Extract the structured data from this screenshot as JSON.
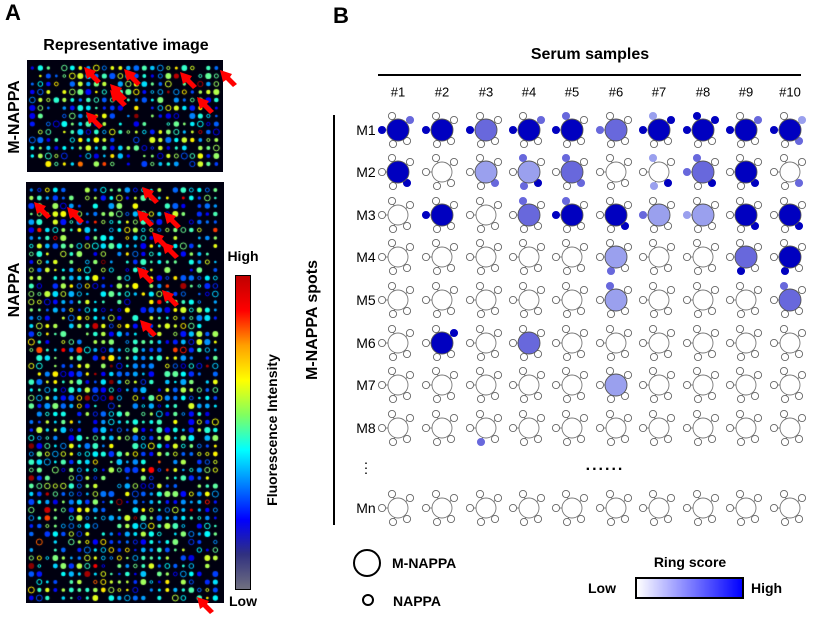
{
  "panel_a": {
    "label": "A",
    "title": "Representative image",
    "row_labels": [
      "M-NAPPA",
      "NAPPA"
    ],
    "colorbar": {
      "high": "High",
      "low": "Low",
      "title": "Fluorescence Intensity",
      "colormap": "jet"
    },
    "arrow_color": "#ff0000"
  },
  "panel_b": {
    "label": "B",
    "column_group": "Serum samples",
    "row_group": "M-NAPPA spots",
    "columns": [
      "#1",
      "#2",
      "#3",
      "#4",
      "#5",
      "#6",
      "#7",
      "#8",
      "#9",
      "#10"
    ],
    "rows": [
      "M1",
      "M2",
      "M3",
      "M4",
      "M5",
      "M6",
      "M7",
      "M8",
      "⋮",
      "Mn"
    ],
    "ellipsis": "......",
    "level_colors": [
      "#ffffff",
      "#9aa0ee",
      "#6868dc",
      "#0000c0"
    ],
    "satellite_order": [
      "top",
      "top-right",
      "left",
      "bottom",
      "bottom-right"
    ],
    "chart_data": {
      "type": "heatmap",
      "value_scale": "ring score level 0 (none) to 3 (high)",
      "cells": {
        "M1": [
          [
            3,
            [
              0,
              2,
              3,
              0,
              0
            ]
          ],
          [
            3,
            [
              0,
              0,
              3,
              0,
              0
            ]
          ],
          [
            2,
            [
              0,
              0,
              3,
              0,
              0
            ]
          ],
          [
            3,
            [
              0,
              2,
              3,
              0,
              0
            ]
          ],
          [
            3,
            [
              2,
              0,
              3,
              0,
              0
            ]
          ],
          [
            2,
            [
              0,
              0,
              2,
              0,
              0
            ]
          ],
          [
            3,
            [
              1,
              3,
              3,
              0,
              0
            ]
          ],
          [
            3,
            [
              3,
              3,
              3,
              0,
              0
            ]
          ],
          [
            3,
            [
              0,
              2,
              3,
              0,
              0
            ]
          ],
          [
            3,
            [
              0,
              1,
              3,
              0,
              2
            ]
          ]
        ],
        "M2": [
          [
            3,
            [
              0,
              0,
              0,
              0,
              3
            ]
          ],
          [
            0,
            [
              0,
              0,
              0,
              0,
              0
            ]
          ],
          [
            1,
            [
              0,
              0,
              0,
              0,
              2
            ]
          ],
          [
            1,
            [
              2,
              0,
              0,
              2,
              3
            ]
          ],
          [
            2,
            [
              2,
              0,
              0,
              0,
              2
            ]
          ],
          [
            0,
            [
              0,
              0,
              0,
              0,
              0
            ]
          ],
          [
            0,
            [
              1,
              0,
              0,
              1,
              3
            ]
          ],
          [
            2,
            [
              2,
              0,
              2,
              0,
              3
            ]
          ],
          [
            3,
            [
              0,
              0,
              0,
              0,
              3
            ]
          ],
          [
            0,
            [
              0,
              0,
              0,
              0,
              2
            ]
          ]
        ],
        "M3": [
          [
            0,
            [
              0,
              0,
              0,
              0,
              0
            ]
          ],
          [
            3,
            [
              0,
              0,
              3,
              0,
              0
            ]
          ],
          [
            0,
            [
              0,
              0,
              0,
              0,
              0
            ]
          ],
          [
            2,
            [
              2,
              0,
              0,
              0,
              0
            ]
          ],
          [
            3,
            [
              2,
              0,
              3,
              0,
              0
            ]
          ],
          [
            3,
            [
              0,
              0,
              0,
              0,
              3
            ]
          ],
          [
            1,
            [
              0,
              0,
              2,
              0,
              0
            ]
          ],
          [
            1,
            [
              0,
              0,
              1,
              0,
              0
            ]
          ],
          [
            3,
            [
              0,
              0,
              0,
              0,
              3
            ]
          ],
          [
            3,
            [
              0,
              0,
              0,
              0,
              3
            ]
          ]
        ],
        "M4": [
          [
            0,
            [
              0,
              0,
              0,
              0,
              0
            ]
          ],
          [
            0,
            [
              0,
              0,
              0,
              0,
              0
            ]
          ],
          [
            0,
            [
              0,
              0,
              0,
              0,
              0
            ]
          ],
          [
            0,
            [
              0,
              0,
              0,
              0,
              0
            ]
          ],
          [
            0,
            [
              0,
              0,
              0,
              0,
              0
            ]
          ],
          [
            1,
            [
              0,
              0,
              0,
              2,
              0
            ]
          ],
          [
            0,
            [
              0,
              0,
              0,
              0,
              0
            ]
          ],
          [
            0,
            [
              0,
              0,
              0,
              0,
              0
            ]
          ],
          [
            2,
            [
              0,
              0,
              0,
              3,
              0
            ]
          ],
          [
            3,
            [
              0,
              0,
              0,
              3,
              0
            ]
          ]
        ],
        "M5": [
          [
            0,
            [
              0,
              0,
              0,
              0,
              0
            ]
          ],
          [
            0,
            [
              0,
              0,
              0,
              0,
              0
            ]
          ],
          [
            0,
            [
              0,
              0,
              0,
              0,
              0
            ]
          ],
          [
            0,
            [
              0,
              0,
              0,
              0,
              0
            ]
          ],
          [
            0,
            [
              0,
              0,
              0,
              0,
              0
            ]
          ],
          [
            1,
            [
              2,
              0,
              0,
              0,
              0
            ]
          ],
          [
            0,
            [
              0,
              0,
              0,
              0,
              0
            ]
          ],
          [
            0,
            [
              0,
              0,
              0,
              0,
              0
            ]
          ],
          [
            0,
            [
              0,
              0,
              0,
              0,
              0
            ]
          ],
          [
            2,
            [
              2,
              0,
              0,
              0,
              0
            ]
          ]
        ],
        "M6": [
          [
            0,
            [
              0,
              0,
              0,
              0,
              0
            ]
          ],
          [
            3,
            [
              0,
              3,
              0,
              0,
              0
            ]
          ],
          [
            0,
            [
              0,
              0,
              0,
              0,
              0
            ]
          ],
          [
            2,
            [
              0,
              0,
              0,
              0,
              0
            ]
          ],
          [
            0,
            [
              0,
              0,
              0,
              0,
              0
            ]
          ],
          [
            0,
            [
              0,
              0,
              0,
              0,
              0
            ]
          ],
          [
            0,
            [
              0,
              0,
              0,
              0,
              0
            ]
          ],
          [
            0,
            [
              0,
              0,
              0,
              0,
              0
            ]
          ],
          [
            0,
            [
              0,
              0,
              0,
              0,
              0
            ]
          ],
          [
            0,
            [
              0,
              0,
              0,
              0,
              0
            ]
          ]
        ],
        "M7": [
          [
            0,
            [
              0,
              0,
              0,
              0,
              0
            ]
          ],
          [
            0,
            [
              0,
              0,
              0,
              0,
              0
            ]
          ],
          [
            0,
            [
              0,
              0,
              0,
              0,
              0
            ]
          ],
          [
            0,
            [
              0,
              0,
              0,
              0,
              0
            ]
          ],
          [
            0,
            [
              0,
              0,
              0,
              0,
              0
            ]
          ],
          [
            1,
            [
              0,
              0,
              0,
              0,
              0
            ]
          ],
          [
            0,
            [
              0,
              0,
              0,
              0,
              0
            ]
          ],
          [
            0,
            [
              0,
              0,
              0,
              0,
              0
            ]
          ],
          [
            0,
            [
              0,
              0,
              0,
              0,
              0
            ]
          ],
          [
            0,
            [
              0,
              0,
              0,
              0,
              0
            ]
          ]
        ],
        "M8": [
          [
            0,
            [
              0,
              0,
              0,
              0,
              0
            ]
          ],
          [
            0,
            [
              0,
              0,
              0,
              0,
              0
            ]
          ],
          [
            0,
            [
              0,
              0,
              0,
              2,
              0
            ]
          ],
          [
            0,
            [
              0,
              0,
              0,
              0,
              0
            ]
          ],
          [
            0,
            [
              0,
              0,
              0,
              0,
              0
            ]
          ],
          [
            0,
            [
              0,
              0,
              0,
              0,
              0
            ]
          ],
          [
            0,
            [
              0,
              0,
              0,
              0,
              0
            ]
          ],
          [
            0,
            [
              0,
              0,
              0,
              0,
              0
            ]
          ],
          [
            0,
            [
              0,
              0,
              0,
              0,
              0
            ]
          ],
          [
            0,
            [
              0,
              0,
              0,
              0,
              0
            ]
          ]
        ],
        "Mn": [
          [
            0,
            [
              0,
              0,
              0,
              0,
              0
            ]
          ],
          [
            0,
            [
              0,
              0,
              0,
              0,
              0
            ]
          ],
          [
            0,
            [
              0,
              0,
              0,
              0,
              0
            ]
          ],
          [
            0,
            [
              0,
              0,
              0,
              0,
              0
            ]
          ],
          [
            0,
            [
              0,
              0,
              0,
              0,
              0
            ]
          ],
          [
            0,
            [
              0,
              0,
              0,
              0,
              0
            ]
          ],
          [
            0,
            [
              0,
              0,
              0,
              0,
              0
            ]
          ],
          [
            0,
            [
              0,
              0,
              0,
              0,
              0
            ]
          ],
          [
            0,
            [
              0,
              0,
              0,
              0,
              0
            ]
          ],
          [
            0,
            [
              0,
              0,
              0,
              0,
              0
            ]
          ]
        ]
      }
    },
    "legend": {
      "large_circle": "M-NAPPA",
      "small_circle": "NAPPA",
      "ring_score_title": "Ring score",
      "low": "Low",
      "high": "High",
      "gradient": [
        "#ffffff",
        "#0000ff"
      ]
    }
  }
}
